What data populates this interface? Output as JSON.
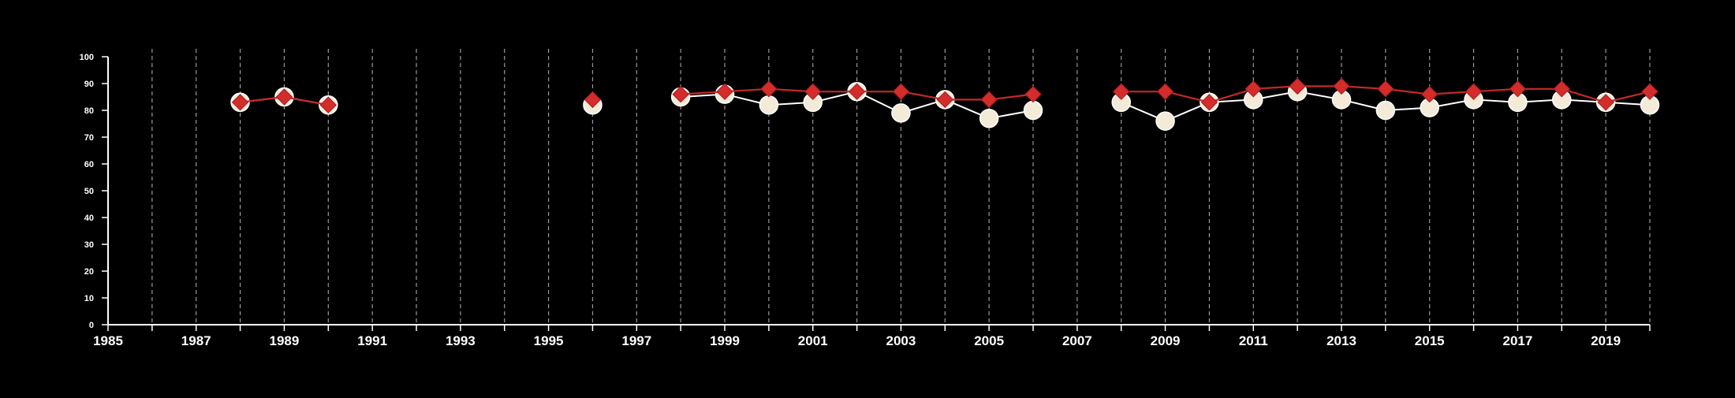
{
  "chart_data": {
    "type": "line",
    "title": "",
    "xlabel": "",
    "ylabel": "",
    "xlim": [
      1985,
      2020
    ],
    "ylim": [
      0,
      100
    ],
    "x_tick_labels": [
      "1985",
      "1987",
      "1989",
      "1991",
      "1993",
      "1995",
      "1997",
      "1999",
      "2001",
      "2003",
      "2005",
      "2007",
      "2009",
      "2011",
      "2013",
      "2015",
      "2017",
      "2019"
    ],
    "y_tick_labels": [
      "0",
      "10",
      "20",
      "30",
      "40",
      "50",
      "60",
      "70",
      "80",
      "90",
      "100"
    ],
    "vertical_gridlines": "every year, dashed",
    "legend": "none",
    "series": [
      {
        "marker": "diamond",
        "color": "#d42b2b",
        "points": [
          {
            "x": 1988,
            "y": 83
          },
          {
            "x": 1989,
            "y": 85
          },
          {
            "x": 1990,
            "y": 82
          },
          {
            "x": 1996,
            "y": 84
          },
          {
            "x": 1998,
            "y": 86
          },
          {
            "x": 1999,
            "y": 87
          },
          {
            "x": 2000,
            "y": 88
          },
          {
            "x": 2001,
            "y": 87
          },
          {
            "x": 2002,
            "y": 87
          },
          {
            "x": 2003,
            "y": 87
          },
          {
            "x": 2004,
            "y": 84
          },
          {
            "x": 2005,
            "y": 84
          },
          {
            "x": 2006,
            "y": 86
          },
          {
            "x": 2008,
            "y": 87
          },
          {
            "x": 2009,
            "y": 87
          },
          {
            "x": 2010,
            "y": 83
          },
          {
            "x": 2011,
            "y": 88
          },
          {
            "x": 2012,
            "y": 89
          },
          {
            "x": 2013,
            "y": 89
          },
          {
            "x": 2014,
            "y": 88
          },
          {
            "x": 2015,
            "y": 86
          },
          {
            "x": 2016,
            "y": 87
          },
          {
            "x": 2017,
            "y": 88
          },
          {
            "x": 2018,
            "y": 88
          },
          {
            "x": 2019,
            "y": 83
          },
          {
            "x": 2020,
            "y": 87
          }
        ]
      },
      {
        "marker": "circle",
        "color": "#f3ead8",
        "points": [
          {
            "x": 1988,
            "y": 83
          },
          {
            "x": 1989,
            "y": 85
          },
          {
            "x": 1990,
            "y": 82
          },
          {
            "x": 1996,
            "y": 82
          },
          {
            "x": 1998,
            "y": 85
          },
          {
            "x": 1999,
            "y": 86
          },
          {
            "x": 2000,
            "y": 82
          },
          {
            "x": 2001,
            "y": 83
          },
          {
            "x": 2002,
            "y": 87
          },
          {
            "x": 2003,
            "y": 79
          },
          {
            "x": 2004,
            "y": 84
          },
          {
            "x": 2005,
            "y": 77
          },
          {
            "x": 2006,
            "y": 80
          },
          {
            "x": 2008,
            "y": 83
          },
          {
            "x": 2009,
            "y": 76
          },
          {
            "x": 2010,
            "y": 83
          },
          {
            "x": 2011,
            "y": 84
          },
          {
            "x": 2012,
            "y": 87
          },
          {
            "x": 2013,
            "y": 84
          },
          {
            "x": 2014,
            "y": 80
          },
          {
            "x": 2015,
            "y": 81
          },
          {
            "x": 2016,
            "y": 84
          },
          {
            "x": 2017,
            "y": 83
          },
          {
            "x": 2018,
            "y": 84
          },
          {
            "x": 2019,
            "y": 83
          },
          {
            "x": 2020,
            "y": 82
          }
        ]
      }
    ]
  }
}
